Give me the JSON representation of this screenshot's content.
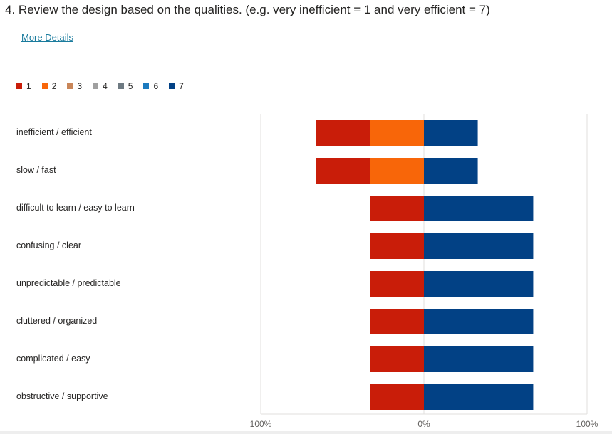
{
  "question": {
    "number": "4.",
    "text": "Review the design based on the qualities. (e.g. very inefficient = 1 and very efficient = 7)"
  },
  "more_details_label": "More Details",
  "colors": {
    "1": "#c91d09",
    "2": "#f86609",
    "3": "#c98659",
    "4": "#a0a0a0",
    "5": "#6e7a82",
    "6": "#1b7abf",
    "7": "#024185"
  },
  "chart_data": {
    "type": "bar",
    "orientation": "horizontal-diverging",
    "legend": [
      "1",
      "2",
      "3",
      "4",
      "5",
      "6",
      "7"
    ],
    "legend_placement": "top-left",
    "categories": [
      "inefficient / efficient",
      "slow / fast",
      "difficult to learn / easy to learn",
      "confusing / clear",
      "unpredictable / predictable",
      "cluttered / organized",
      "complicated / easy",
      "obstructive / supportive"
    ],
    "series": [
      {
        "name": "1",
        "side": "negative",
        "values": [
          33,
          33,
          33,
          33,
          33,
          33,
          33,
          33
        ]
      },
      {
        "name": "2",
        "side": "negative",
        "values": [
          33,
          33,
          0,
          0,
          0,
          0,
          0,
          0
        ]
      },
      {
        "name": "3",
        "side": "negative",
        "values": [
          0,
          0,
          0,
          0,
          0,
          0,
          0,
          0
        ]
      },
      {
        "name": "4",
        "side": "positive",
        "values": [
          0,
          0,
          0,
          0,
          0,
          0,
          0,
          0
        ]
      },
      {
        "name": "5",
        "side": "positive",
        "values": [
          0,
          0,
          0,
          0,
          0,
          0,
          0,
          0
        ]
      },
      {
        "name": "6",
        "side": "positive",
        "values": [
          0,
          0,
          0,
          0,
          0,
          0,
          0,
          0
        ]
      },
      {
        "name": "7",
        "side": "positive",
        "values": [
          33,
          33,
          67,
          67,
          67,
          67,
          67,
          67
        ]
      }
    ],
    "xlim": [
      -100,
      100
    ],
    "x_tick_labels": [
      "100%",
      "0%",
      "100%"
    ],
    "grid": true
  }
}
